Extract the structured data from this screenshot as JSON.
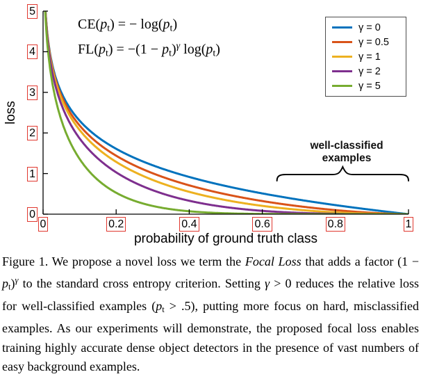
{
  "chart_data": {
    "type": "line",
    "title": "",
    "xlabel": "probability of ground truth class",
    "ylabel": "loss",
    "xlim": [
      0,
      1
    ],
    "ylim": [
      0,
      5
    ],
    "xticks": [
      "0",
      "0.2",
      "0.4",
      "0.6",
      "0.8",
      "1"
    ],
    "yticks": [
      "0",
      "1",
      "2",
      "3",
      "4",
      "5"
    ],
    "grid": false,
    "legend_position": "top-right",
    "formula": "FL(pt) = -(1 - pt)^gamma * log(pt); gamma = 0 is standard cross entropy CE",
    "x_samples": [
      0.05,
      0.1,
      0.2,
      0.3,
      0.4,
      0.5,
      0.6,
      0.7,
      0.8,
      0.9,
      1.0
    ],
    "series": [
      {
        "name": "γ = 0",
        "gamma": 0,
        "color": "#0072BD",
        "y_samples": [
          2.996,
          2.303,
          1.609,
          1.204,
          0.916,
          0.693,
          0.511,
          0.357,
          0.223,
          0.105,
          0
        ]
      },
      {
        "name": "γ = 0.5",
        "gamma": 0.5,
        "color": "#D95319",
        "y_samples": [
          2.92,
          2.184,
          1.439,
          1.007,
          0.71,
          0.49,
          0.323,
          0.195,
          0.1,
          0.033,
          0
        ]
      },
      {
        "name": "γ = 1",
        "gamma": 1,
        "color": "#EDB120",
        "y_samples": [
          2.846,
          2.072,
          1.288,
          0.843,
          0.55,
          0.347,
          0.204,
          0.107,
          0.045,
          0.011,
          0
        ]
      },
      {
        "name": "γ = 2",
        "gamma": 2,
        "color": "#7E2F8E",
        "y_samples": [
          2.704,
          1.865,
          1.03,
          0.59,
          0.33,
          0.173,
          0.082,
          0.032,
          0.009,
          0.001,
          0
        ]
      },
      {
        "name": "γ = 5",
        "gamma": 5,
        "color": "#77AC30",
        "y_samples": [
          2.318,
          1.36,
          0.527,
          0.202,
          0.071,
          0.022,
          0.005,
          0.0009,
          0.0001,
          1e-06,
          0
        ]
      }
    ],
    "annotation": {
      "line1": "well-classified",
      "line2": "examples",
      "brace_x_range": [
        0.64,
        1.0
      ]
    }
  },
  "equations": {
    "line1": [
      {
        "t": "CE(",
        "s": "r"
      },
      {
        "t": "p",
        "s": "i"
      },
      {
        "t": "t",
        "s": "sb"
      },
      {
        "t": ") = − log(",
        "s": "r"
      },
      {
        "t": "p",
        "s": "i"
      },
      {
        "t": "t",
        "s": "sb"
      },
      {
        "t": ")",
        "s": "r"
      }
    ],
    "line2": [
      {
        "t": "FL(",
        "s": "r"
      },
      {
        "t": "p",
        "s": "i"
      },
      {
        "t": "t",
        "s": "sb"
      },
      {
        "t": ") = −(1 − ",
        "s": "r"
      },
      {
        "t": "p",
        "s": "i"
      },
      {
        "t": "t",
        "s": "sb"
      },
      {
        "t": ")",
        "s": "r"
      },
      {
        "t": "γ",
        "s": "spi"
      },
      {
        "t": " log(",
        "s": "r"
      },
      {
        "t": "p",
        "s": "i"
      },
      {
        "t": "t",
        "s": "sb"
      },
      {
        "t": ")",
        "s": "r"
      }
    ]
  },
  "caption": {
    "parts": [
      {
        "t": "Figure 1. We propose a novel loss we term the ",
        "s": "n"
      },
      {
        "t": "Focal Loss",
        "s": "i"
      },
      {
        "t": " that adds a factor (1 − ",
        "s": "n"
      },
      {
        "t": "p",
        "s": "i"
      },
      {
        "t": "t",
        "s": "sb"
      },
      {
        "t": ")",
        "s": "n"
      },
      {
        "t": "γ",
        "s": "spi"
      },
      {
        "t": " to the standard cross entropy criterion. Setting ",
        "s": "n"
      },
      {
        "t": "γ",
        "s": "i"
      },
      {
        "t": " > 0 reduces the relative loss for well-classified examples (",
        "s": "n"
      },
      {
        "t": "p",
        "s": "i"
      },
      {
        "t": "t",
        "s": "sb"
      },
      {
        "t": " > .5), putting more focus on hard, misclassified examples. As our experiments will demonstrate, the proposed focal loss enables training highly accurate dense object detectors in the presence of vast numbers of easy background examples.",
        "s": "n"
      }
    ]
  },
  "colors": {
    "tick_box_border": "#e0372e",
    "axis": "#000000",
    "legend_border": "#4d4d4d",
    "brace": "#000000"
  }
}
